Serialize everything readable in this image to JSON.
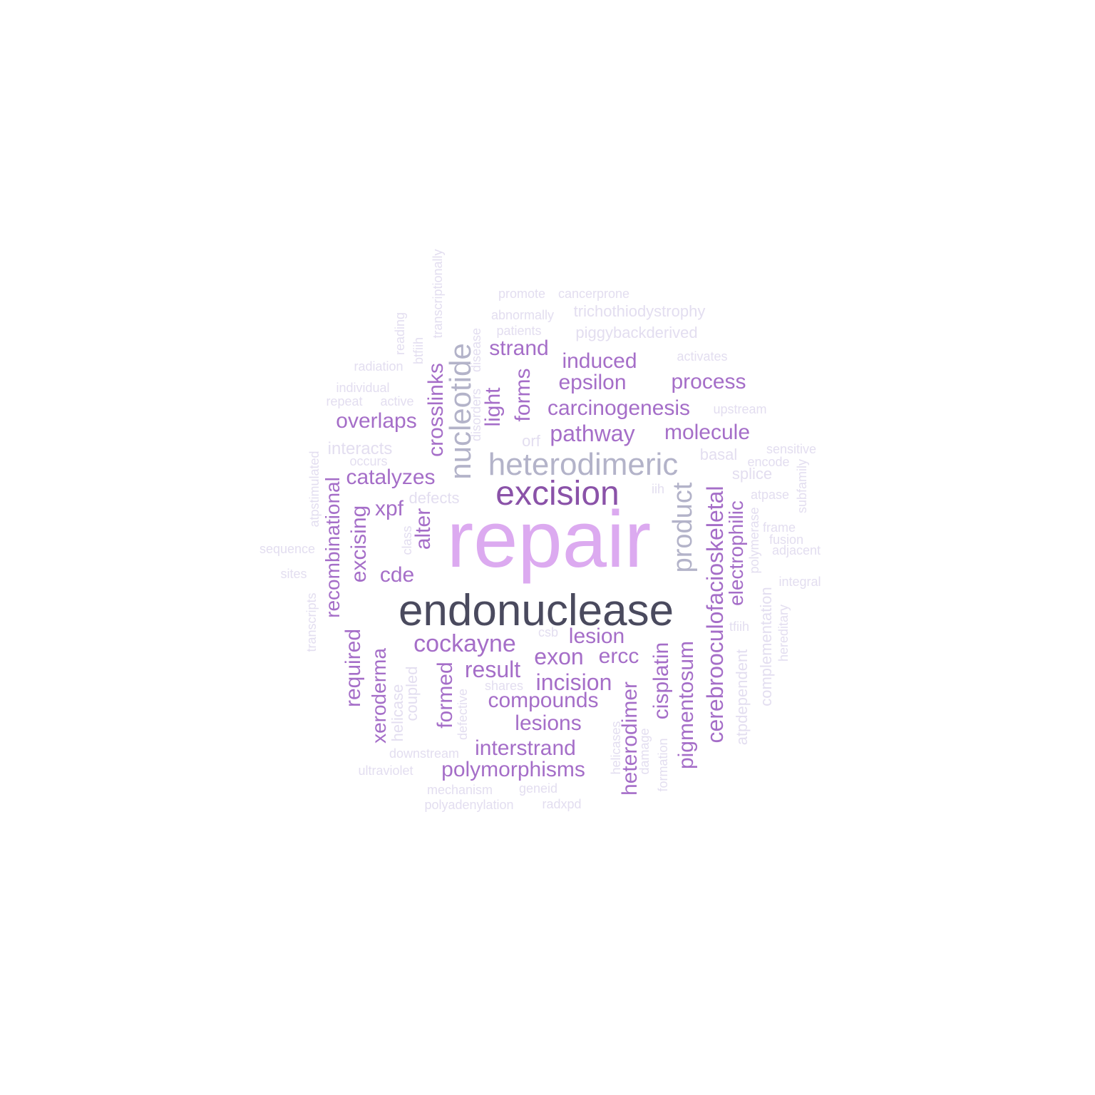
{
  "colors": {
    "darkest": "#4a4a5e",
    "dark_purple": "#8a52a8",
    "pink": "#dcaaf0",
    "gray_blue": "#b3b3c9",
    "mid_purple": "#a56ec8",
    "light": "#e3def0"
  },
  "words": [
    {
      "text": "repair",
      "color": "pink"
    },
    {
      "text": "endonuclease",
      "color": "darkest"
    },
    {
      "text": "excision",
      "color": "dark_purple"
    },
    {
      "text": "heterodimeric",
      "color": "gray_blue"
    },
    {
      "text": "nucleotide",
      "color": "gray_blue"
    },
    {
      "text": "product",
      "color": "gray_blue"
    },
    {
      "text": "cockayne",
      "color": "mid_purple"
    },
    {
      "text": "cerebrooculofacioskeletal",
      "color": "mid_purple"
    },
    {
      "text": "recombinational",
      "color": "mid_purple"
    },
    {
      "text": "pathway",
      "color": "mid_purple"
    },
    {
      "text": "molecule",
      "color": "mid_purple"
    },
    {
      "text": "carcinogenesis",
      "color": "mid_purple"
    },
    {
      "text": "epsilon",
      "color": "mid_purple"
    },
    {
      "text": "induced",
      "color": "mid_purple"
    },
    {
      "text": "process",
      "color": "mid_purple"
    },
    {
      "text": "strand",
      "color": "mid_purple"
    },
    {
      "text": "overlaps",
      "color": "mid_purple"
    },
    {
      "text": "catalyzes",
      "color": "mid_purple"
    },
    {
      "text": "xpf",
      "color": "mid_purple"
    },
    {
      "text": "cde",
      "color": "mid_purple"
    },
    {
      "text": "result",
      "color": "mid_purple"
    },
    {
      "text": "exon",
      "color": "mid_purple"
    },
    {
      "text": "ercc",
      "color": "mid_purple"
    },
    {
      "text": "lesion",
      "color": "mid_purple"
    },
    {
      "text": "incision",
      "color": "mid_purple"
    },
    {
      "text": "compounds",
      "color": "mid_purple"
    },
    {
      "text": "lesions",
      "color": "mid_purple"
    },
    {
      "text": "interstrand",
      "color": "mid_purple"
    },
    {
      "text": "polymorphisms",
      "color": "mid_purple"
    },
    {
      "text": "crosslinks",
      "color": "mid_purple"
    },
    {
      "text": "light",
      "color": "mid_purple"
    },
    {
      "text": "forms",
      "color": "mid_purple"
    },
    {
      "text": "alter",
      "color": "mid_purple"
    },
    {
      "text": "excising",
      "color": "mid_purple"
    },
    {
      "text": "required",
      "color": "mid_purple"
    },
    {
      "text": "xeroderma",
      "color": "mid_purple"
    },
    {
      "text": "formed",
      "color": "mid_purple"
    },
    {
      "text": "heterodimer",
      "color": "mid_purple"
    },
    {
      "text": "cisplatin",
      "color": "mid_purple"
    },
    {
      "text": "pigmentosum",
      "color": "mid_purple"
    },
    {
      "text": "electrophilic",
      "color": "mid_purple"
    },
    {
      "text": "promote",
      "color": "light"
    },
    {
      "text": "cancerprone",
      "color": "light"
    },
    {
      "text": "abnormally",
      "color": "light"
    },
    {
      "text": "trichothiodystrophy",
      "color": "light"
    },
    {
      "text": "patients",
      "color": "light"
    },
    {
      "text": "piggybackderived",
      "color": "light"
    },
    {
      "text": "activates",
      "color": "light"
    },
    {
      "text": "radiation",
      "color": "light"
    },
    {
      "text": "individual",
      "color": "light"
    },
    {
      "text": "repeat",
      "color": "light"
    },
    {
      "text": "active",
      "color": "light"
    },
    {
      "text": "upstream",
      "color": "light"
    },
    {
      "text": "interacts",
      "color": "light"
    },
    {
      "text": "occurs",
      "color": "light"
    },
    {
      "text": "orf",
      "color": "light"
    },
    {
      "text": "basal",
      "color": "light"
    },
    {
      "text": "sensitive",
      "color": "light"
    },
    {
      "text": "encode",
      "color": "light"
    },
    {
      "text": "splice",
      "color": "light"
    },
    {
      "text": "iih",
      "color": "light"
    },
    {
      "text": "atpase",
      "color": "light"
    },
    {
      "text": "defects",
      "color": "light"
    },
    {
      "text": "frame",
      "color": "light"
    },
    {
      "text": "fusion",
      "color": "light"
    },
    {
      "text": "adjacent",
      "color": "light"
    },
    {
      "text": "sequence",
      "color": "light"
    },
    {
      "text": "sites",
      "color": "light"
    },
    {
      "text": "integral",
      "color": "light"
    },
    {
      "text": "csb",
      "color": "light"
    },
    {
      "text": "tfiih",
      "color": "light"
    },
    {
      "text": "shares",
      "color": "light"
    },
    {
      "text": "downstream",
      "color": "light"
    },
    {
      "text": "ultraviolet",
      "color": "light"
    },
    {
      "text": "mechanism",
      "color": "light"
    },
    {
      "text": "geneid",
      "color": "light"
    },
    {
      "text": "polyadenylation",
      "color": "light"
    },
    {
      "text": "radxpd",
      "color": "light"
    },
    {
      "text": "transcriptionally",
      "color": "light"
    },
    {
      "text": "reading",
      "color": "light"
    },
    {
      "text": "btfiih",
      "color": "light"
    },
    {
      "text": "disease",
      "color": "light"
    },
    {
      "text": "disorders",
      "color": "light"
    },
    {
      "text": "atpstimulated",
      "color": "light"
    },
    {
      "text": "class",
      "color": "light"
    },
    {
      "text": "transcripts",
      "color": "light"
    },
    {
      "text": "helicase",
      "color": "light"
    },
    {
      "text": "coupled",
      "color": "light"
    },
    {
      "text": "defective",
      "color": "light"
    },
    {
      "text": "helicases",
      "color": "light"
    },
    {
      "text": "damage",
      "color": "light"
    },
    {
      "text": "formation",
      "color": "light"
    },
    {
      "text": "atpdependent",
      "color": "light"
    },
    {
      "text": "complementation",
      "color": "light"
    },
    {
      "text": "hereditary",
      "color": "light"
    },
    {
      "text": "polymerase",
      "color": "light"
    },
    {
      "text": "subfamily",
      "color": "light"
    }
  ]
}
